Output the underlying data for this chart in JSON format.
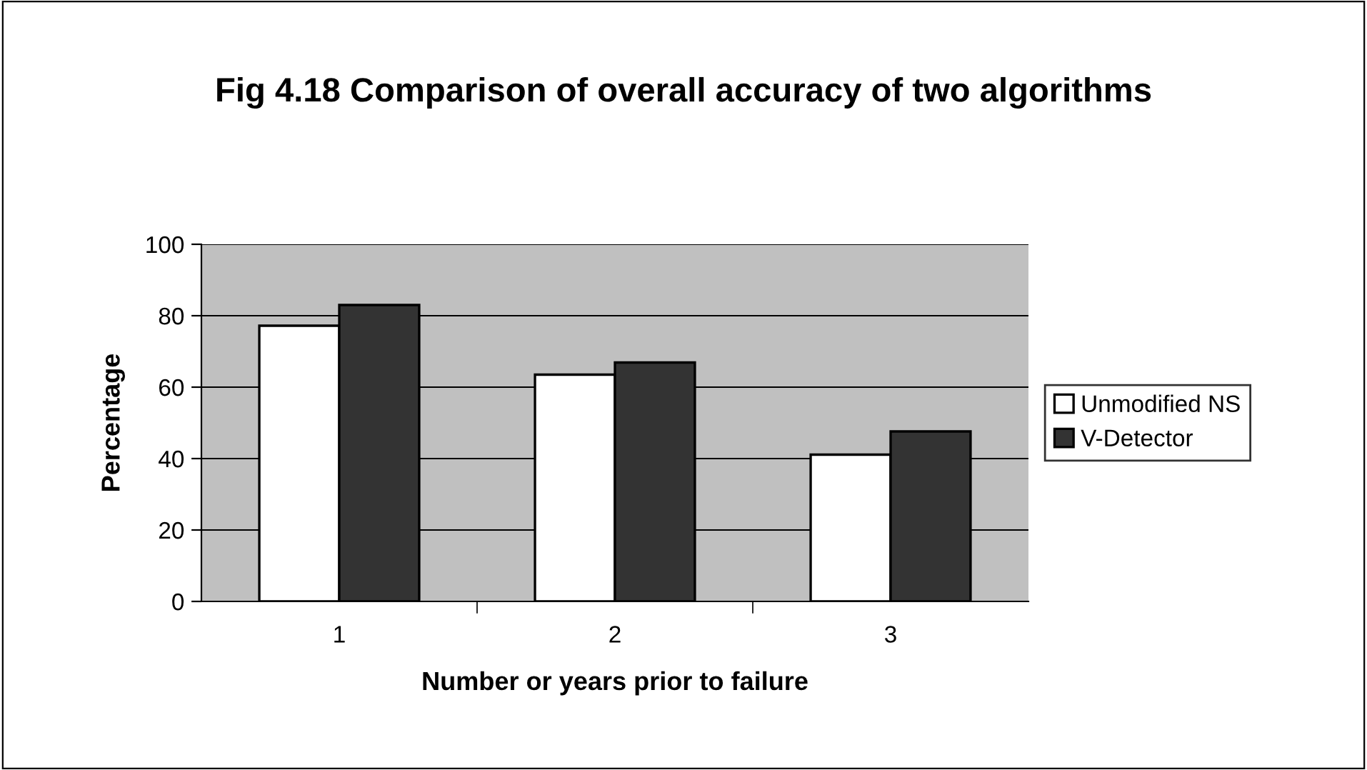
{
  "chart_data": {
    "type": "bar",
    "title": "Fig 4.18 Comparison of overall accuracy of two algorithms",
    "xlabel": "Number or years prior to failure",
    "ylabel": "Percentage",
    "categories": [
      "1",
      "2",
      "3"
    ],
    "series": [
      {
        "name": "Unmodified NS",
        "color": "#ffffff",
        "values": [
          77.2,
          63.5,
          41.1
        ]
      },
      {
        "name": "V-Detector",
        "color": "#333333",
        "values": [
          83.0,
          66.9,
          47.6
        ]
      }
    ],
    "ylim": [
      0,
      100
    ],
    "yticks": [
      0,
      20,
      40,
      60,
      80,
      100
    ],
    "grid": "y",
    "legend": "right"
  }
}
